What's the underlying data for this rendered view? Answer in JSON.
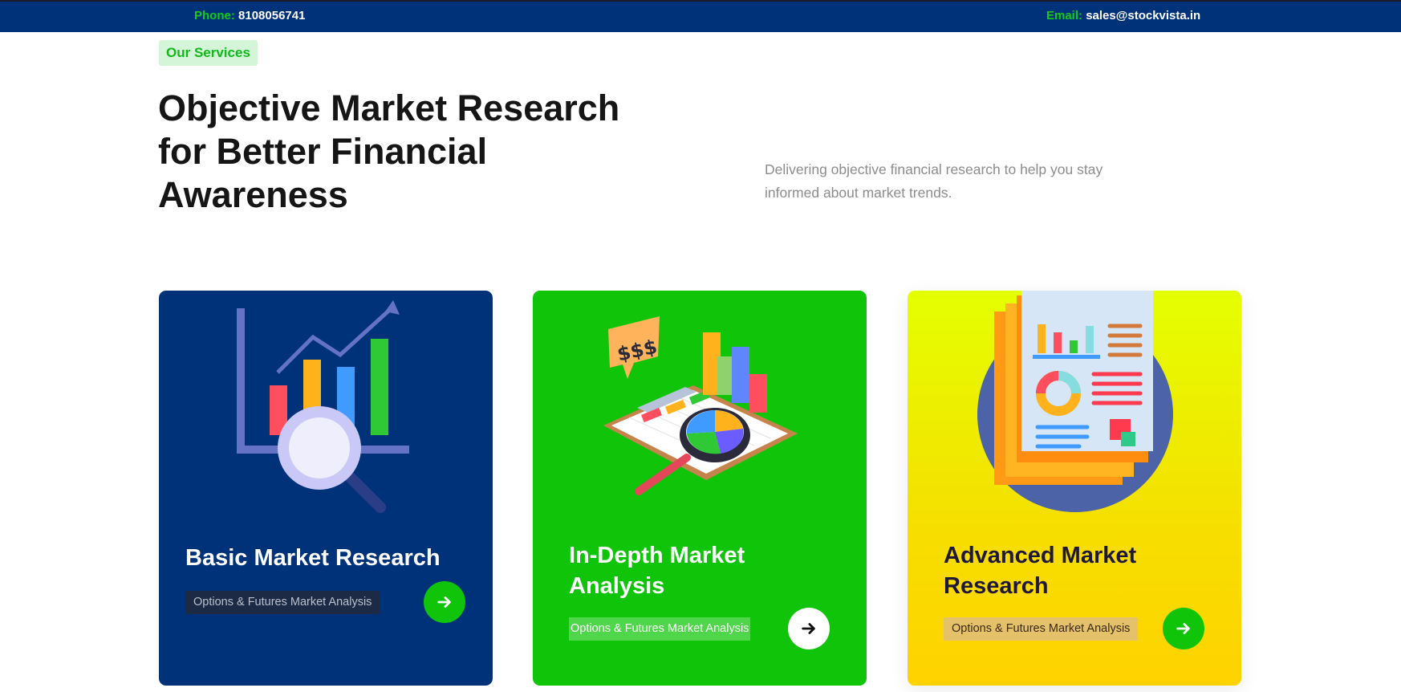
{
  "topbar": {
    "phone_label": "Phone:",
    "phone_value": "8108056741",
    "email_label": "Email:",
    "email_value": "sales@stockvista.in"
  },
  "section": {
    "badge": "Our Services",
    "heading": "Objective Market Research for Better Financial Awareness",
    "description": "Delivering objective financial research to help you stay informed about market trends."
  },
  "cards": [
    {
      "title": "Basic Market Research",
      "tag": "Options & Futures Market Analysis",
      "icon": "analytics-magnifier-illustration"
    },
    {
      "title": "In-Depth Market Analysis",
      "tag": "Options & Futures Market Analysis",
      "icon": "clipboard-charts-illustration"
    },
    {
      "title": "Advanced Market Research",
      "tag": "Options & Futures Market Analysis",
      "icon": "report-document-illustration"
    }
  ],
  "colors": {
    "navy": "#00327a",
    "green": "#10c40a",
    "yellow": "#f6df00"
  }
}
